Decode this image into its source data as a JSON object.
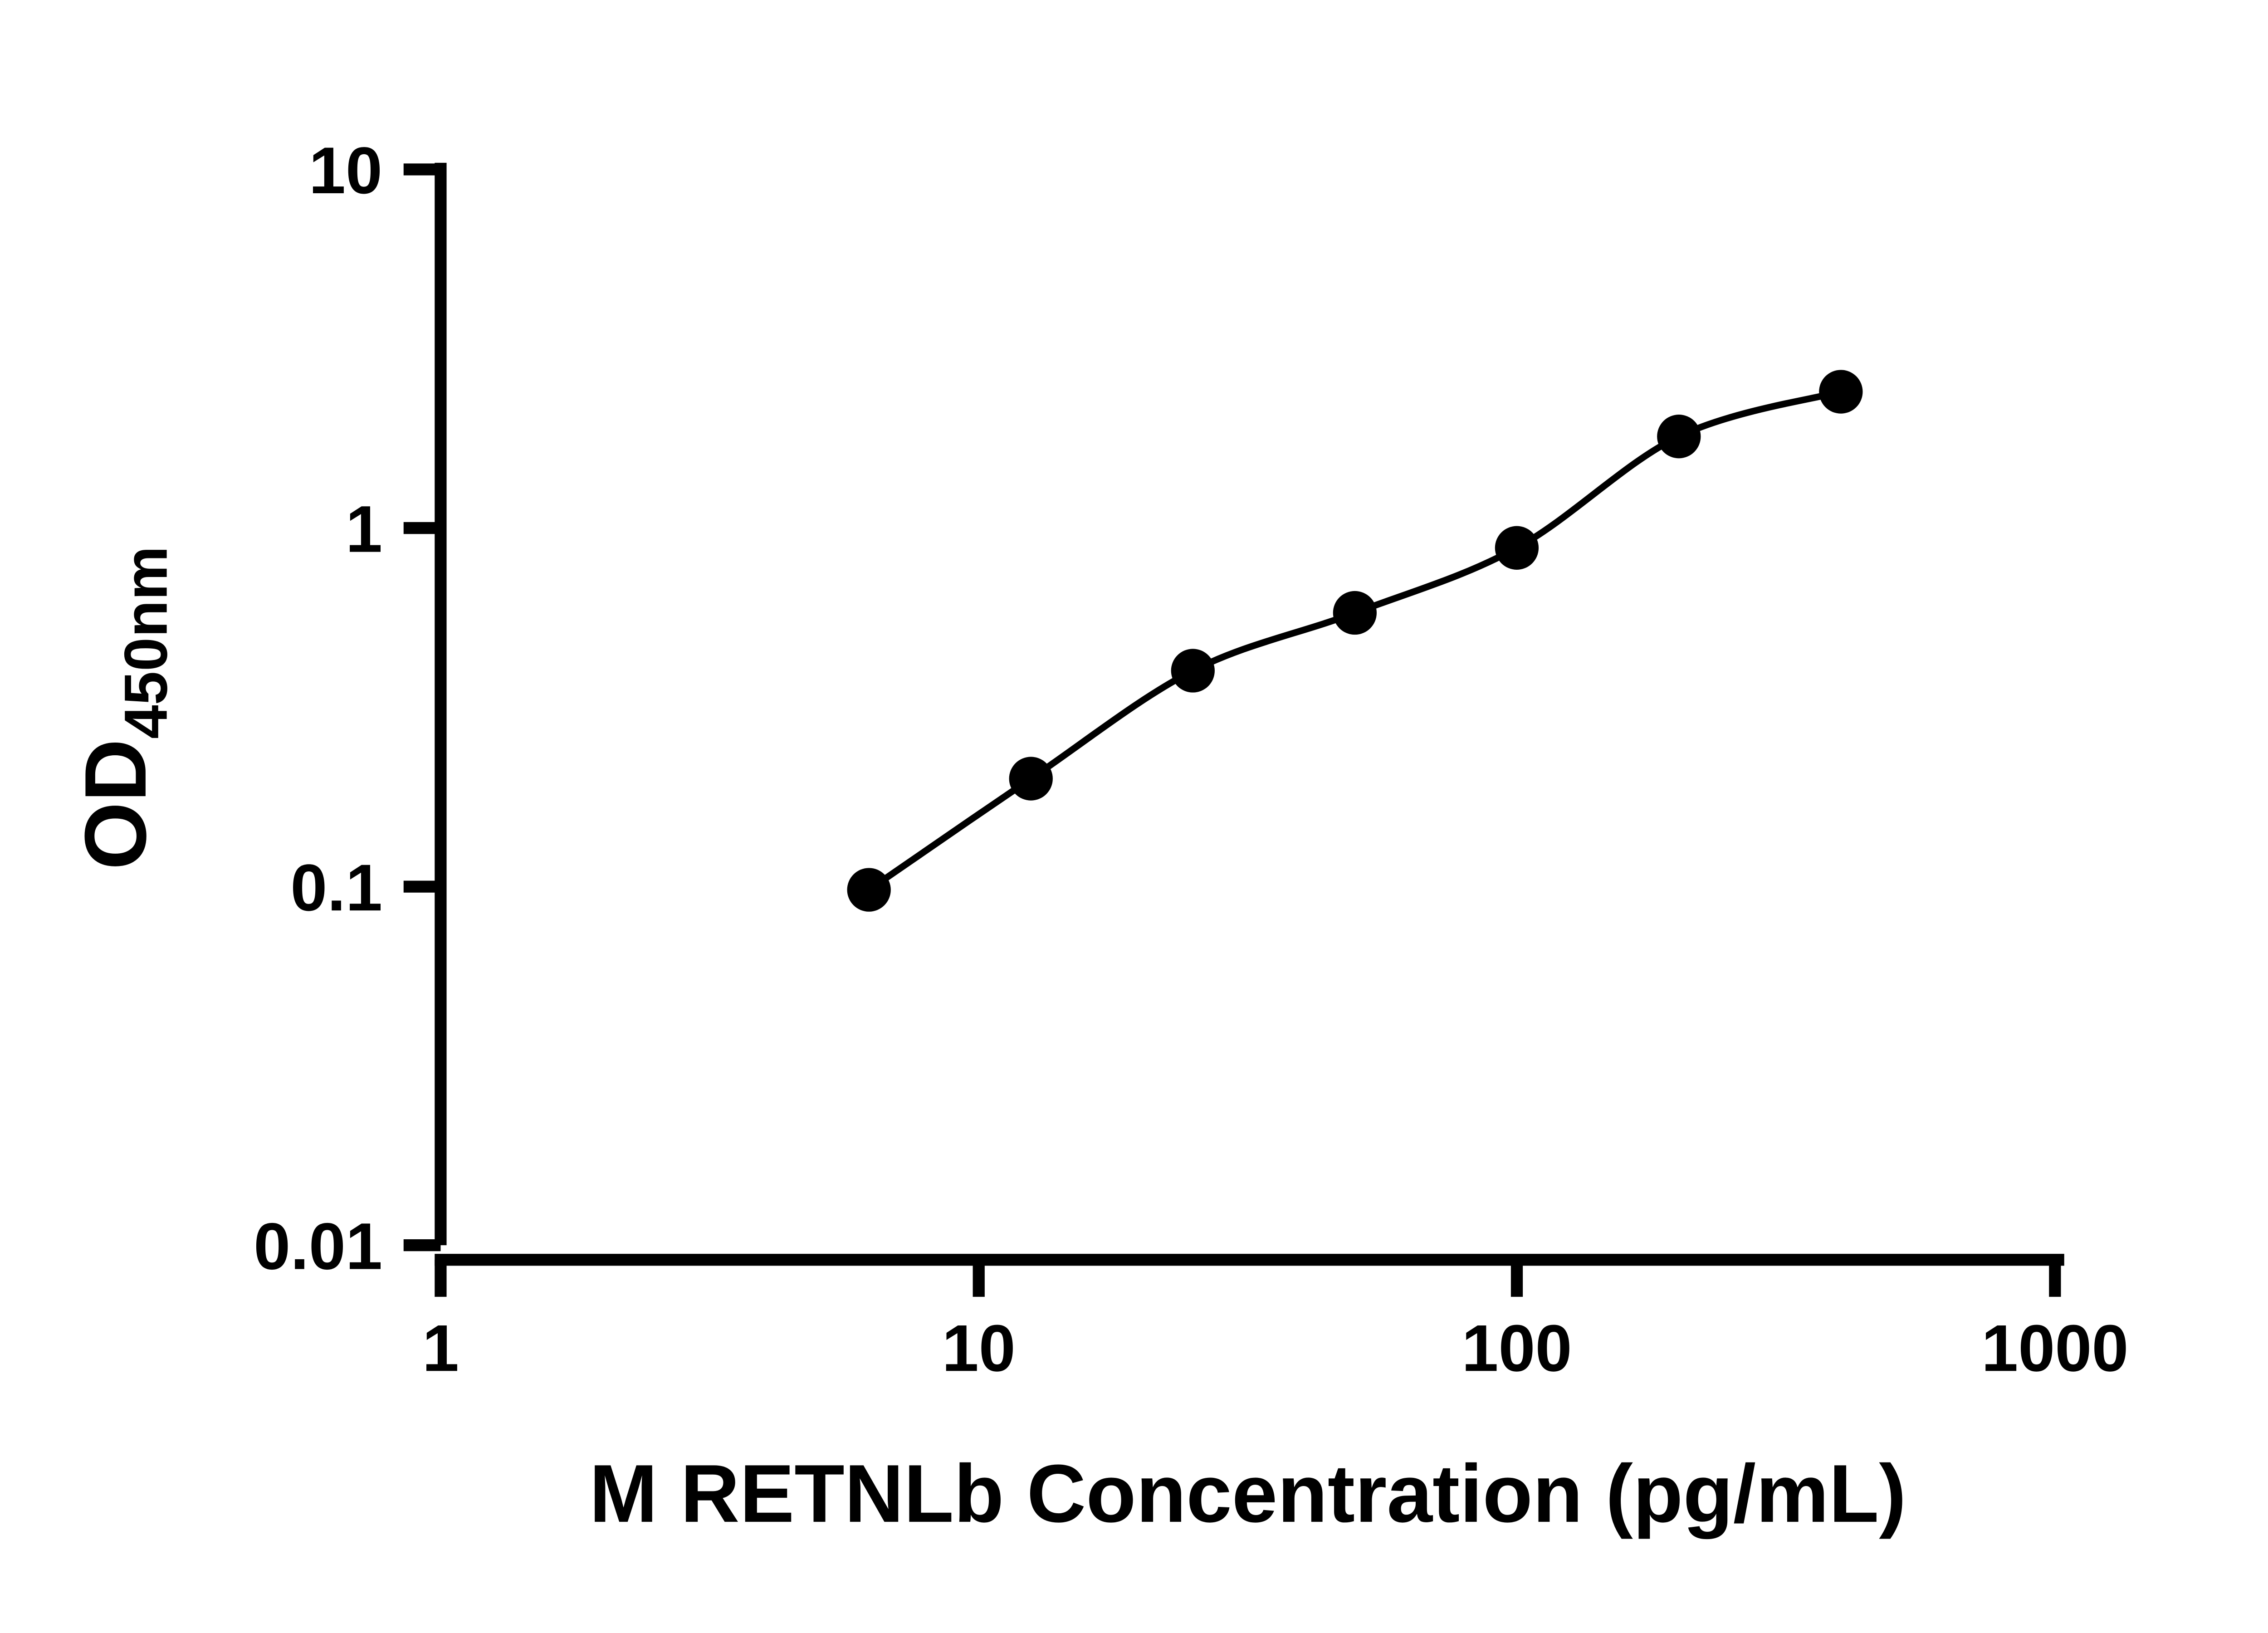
{
  "figure": {
    "background": "#ffffff"
  },
  "chart_data": {
    "type": "scatter",
    "title": "",
    "xlabel": "M RETNLb Concentration (pg/mL)",
    "ylabel_main": "OD",
    "ylabel_sub": "450nm",
    "x_scale": "log10",
    "y_scale": "log10",
    "xlim": [
      1,
      1000
    ],
    "ylim": [
      0.01,
      10
    ],
    "x_ticks": [
      "1",
      "10",
      "100",
      "1000"
    ],
    "y_ticks": [
      "0.01",
      "0.1",
      "1",
      "10"
    ],
    "grid": false,
    "legend": "none",
    "marker": {
      "shape": "circle",
      "color": "#000000"
    },
    "line": {
      "style": "smooth",
      "color": "#000000"
    },
    "points": [
      {
        "x": 6.25,
        "y": 0.098
      },
      {
        "x": 12.5,
        "y": 0.2
      },
      {
        "x": 25,
        "y": 0.4
      },
      {
        "x": 50,
        "y": 0.58
      },
      {
        "x": 100,
        "y": 0.88
      },
      {
        "x": 200,
        "y": 1.8
      },
      {
        "x": 400,
        "y": 2.4
      }
    ]
  }
}
